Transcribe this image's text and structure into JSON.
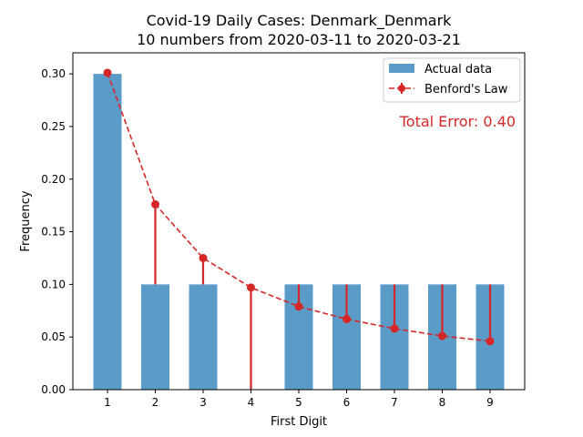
{
  "chart_data": {
    "type": "bar",
    "title": "Covid-19 Daily Cases: Denmark_Denmark",
    "subtitle": "10 numbers from 2020-03-11 to 2020-03-21",
    "xlabel": "First Digit",
    "ylabel": "Frequency",
    "categories": [
      "1",
      "2",
      "3",
      "4",
      "5",
      "6",
      "7",
      "8",
      "9"
    ],
    "ylim": [
      0,
      0.32
    ],
    "yticks": [
      "0.00",
      "0.05",
      "0.10",
      "0.15",
      "0.20",
      "0.25",
      "0.30"
    ],
    "grid": false,
    "legend_position": "top-right",
    "series": [
      {
        "name": "Actual data",
        "type": "bar",
        "color": "#5b9bc8",
        "values": [
          0.3,
          0.1,
          0.1,
          0.0,
          0.1,
          0.1,
          0.1,
          0.1,
          0.1
        ]
      },
      {
        "name": "Benford's Law",
        "type": "line-errorbar",
        "color": "#d62728",
        "values": [
          0.301,
          0.176,
          0.125,
          0.097,
          0.079,
          0.067,
          0.058,
          0.051,
          0.046
        ]
      }
    ],
    "annotation": "Total Error: 0.40",
    "annotation_color": "#d62728"
  }
}
